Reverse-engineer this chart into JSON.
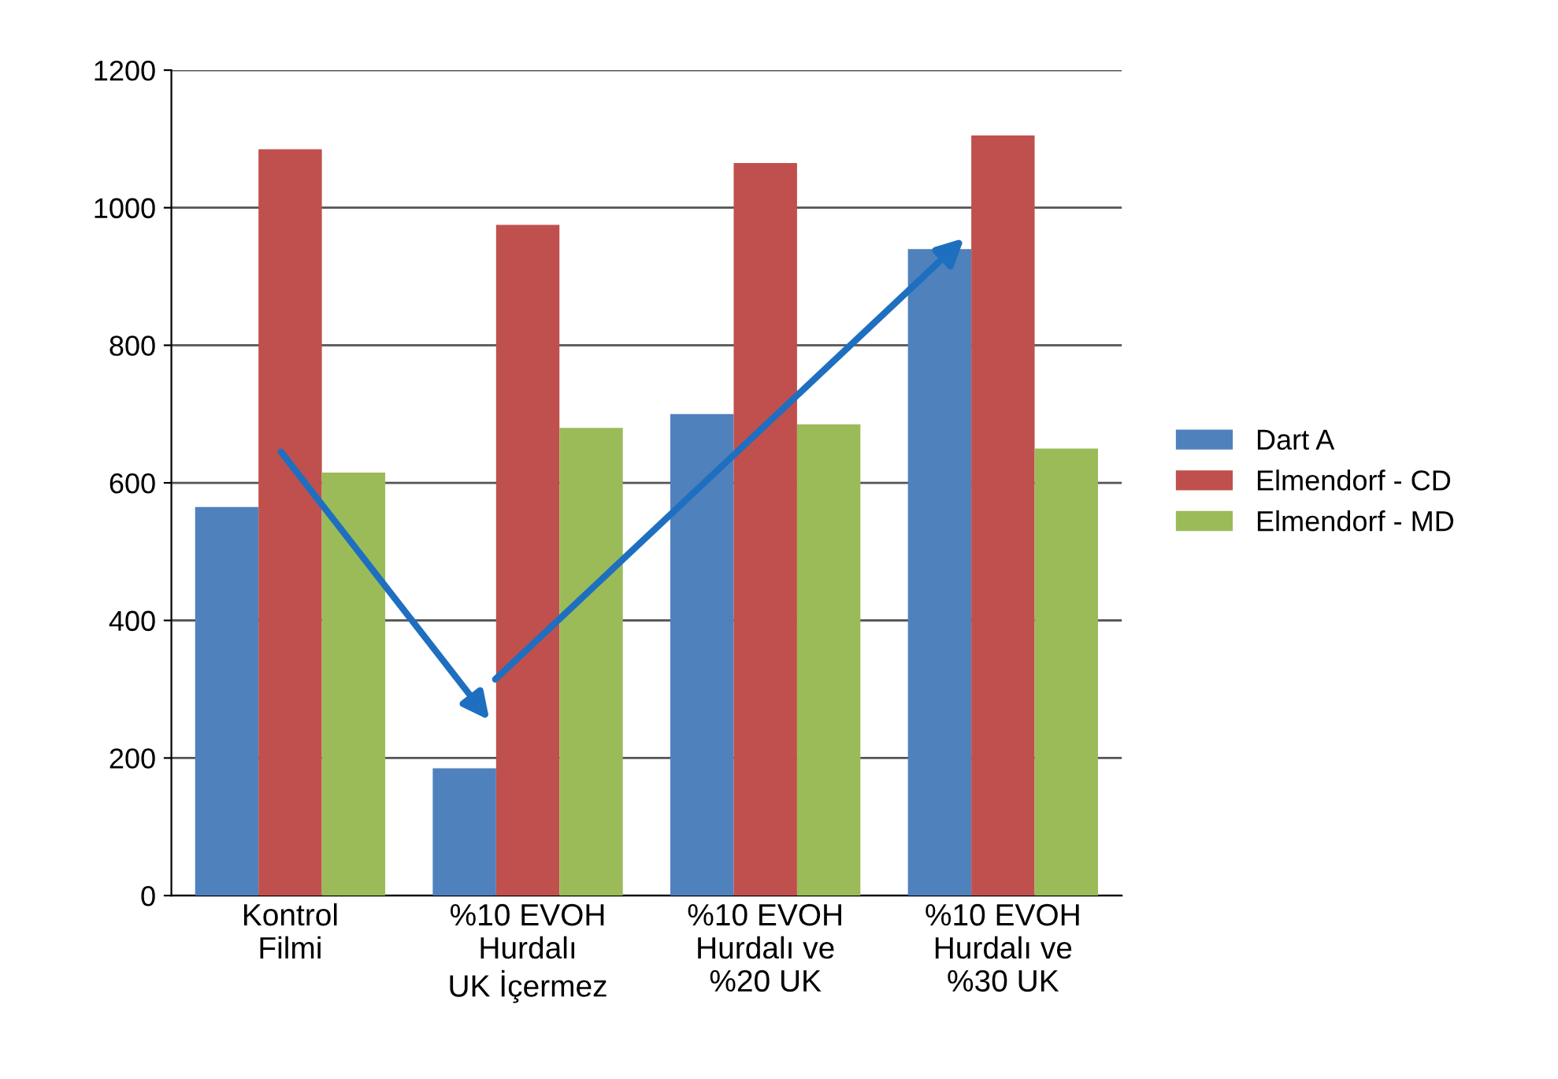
{
  "chart_data": {
    "type": "bar",
    "categories": [
      "Kontrol\nFilmi",
      "%10 EVOH\nHurdalı\nUK İçermez",
      "%10 EVOH\nHurdalı ve\n%20 UK",
      "%10 EVOH\nHurdalı ve\n%30 UK"
    ],
    "series": [
      {
        "name": "Dart A",
        "color": "#4f81bd",
        "values": [
          565,
          185,
          700,
          940
        ]
      },
      {
        "name": "Elmendorf - CD",
        "color": "#c0504d",
        "values": [
          1085,
          975,
          1065,
          1105
        ]
      },
      {
        "name": "Elmendorf - MD",
        "color": "#9bbb59",
        "values": [
          615,
          680,
          685,
          650
        ]
      }
    ],
    "ylim": [
      0,
      1200
    ],
    "yticks": [
      0,
      200,
      400,
      600,
      800,
      1000,
      1200
    ],
    "grid": "y",
    "legend": "right"
  }
}
